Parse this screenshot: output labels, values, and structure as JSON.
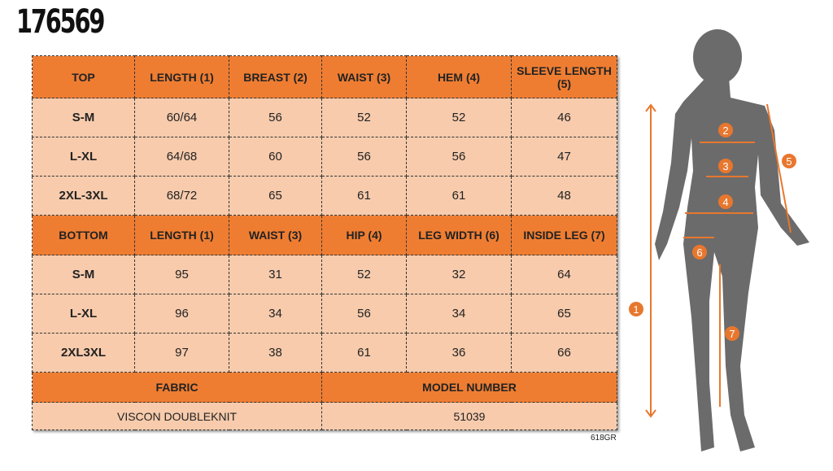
{
  "product_code": "176569",
  "top": {
    "headers": [
      "TOP",
      "LENGTH (1)",
      "BREAST (2)",
      "WAIST (3)",
      "HEM (4)",
      "SLEEVE LENGTH (5)"
    ],
    "rows": [
      [
        "S-M",
        "60/64",
        "56",
        "52",
        "52",
        "46"
      ],
      [
        "L-XL",
        "64/68",
        "60",
        "56",
        "56",
        "47"
      ],
      [
        "2XL-3XL",
        "68/72",
        "65",
        "61",
        "61",
        "48"
      ]
    ]
  },
  "bottom": {
    "headers": [
      "BOTTOM",
      "LENGTH (1)",
      "WAIST (3)",
      "HIP (4)",
      "LEG WIDTH (6)",
      "INSIDE LEG (7)"
    ],
    "rows": [
      [
        "S-M",
        "95",
        "31",
        "52",
        "32",
        "64"
      ],
      [
        "L-XL",
        "96",
        "34",
        "56",
        "34",
        "65"
      ],
      [
        "2XL3XL",
        "97",
        "38",
        "61",
        "36",
        "66"
      ]
    ]
  },
  "fabric": {
    "label": "FABRIC",
    "value": "VISCON DOUBLEKNIT"
  },
  "model": {
    "label": "MODEL NUMBER",
    "value": "51039"
  },
  "footer_code": "618GR",
  "figure_markers": [
    "1",
    "2",
    "3",
    "4",
    "5",
    "6",
    "7"
  ],
  "colors": {
    "header": "#ee7d32",
    "cell": "#f7cbac",
    "silhouette": "#6b6b6b",
    "marker": "#e8772e"
  }
}
